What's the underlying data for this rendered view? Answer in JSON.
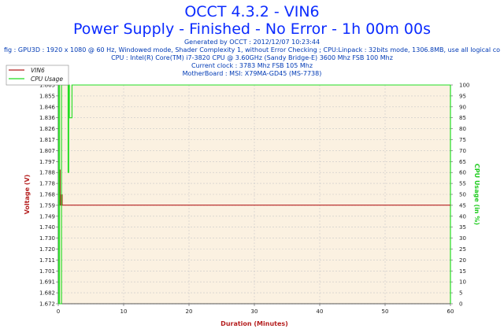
{
  "header": {
    "title": "OCCT 4.3.2 - VIN6",
    "subtitle": "Power Supply - Finished - No Error - 1h 00m 00s",
    "info_lines": [
      "Generated by OCCT : 2012/12/07 10:23:44",
      "fig : GPU3D : 1920 x 1080 @ 60 Hz, Windowed mode, Shader Complexity 1, without Error Checking ; CPU:Linpack : 32bits mode, 1306.8MB, use all logical co",
      "CPU : Intel(R) Core(TM) i7-3820 CPU @ 3.60GHz (Sandy Bridge-E) 3600 Mhz FSB 100 Mhz",
      "Current clock : 3783 Mhz FSB 105 Mhz",
      "MotherBoard : MSI: X79MA-GD45 (MS-7738)"
    ]
  },
  "colors": {
    "title": "#0b2bff",
    "info": "#003ab5",
    "plot_bg": "#fbf1e1",
    "grid": "#c8c8c8",
    "vin6": "#b51f1f",
    "cpu": "#22dd22",
    "left_axis_label": "#b51f1f",
    "right_axis_label": "#22cc22",
    "x_axis_label": "#b51f1f"
  },
  "chart_data": {
    "type": "line",
    "xlabel": "Duration (Minutes)",
    "ylabel": "Voltage (V)",
    "y2label": "CPU Usage (in %)",
    "xlim": [
      0,
      60
    ],
    "ylim": [
      1.672,
      1.865
    ],
    "y2lim": [
      0,
      100
    ],
    "x_ticks": [
      "0",
      "10",
      "20",
      "30",
      "40",
      "50",
      "60"
    ],
    "y_ticks": [
      "1.672",
      "1.682",
      "1.691",
      "1.701",
      "1.711",
      "1.720",
      "1.730",
      "1.740",
      "1.749",
      "1.759",
      "1.768",
      "1.778",
      "1.788",
      "1.797",
      "1.807",
      "1.817",
      "1.826",
      "1.836",
      "1.846",
      "1.855",
      "1.865"
    ],
    "y2_ticks": [
      "0",
      "5",
      "10",
      "15",
      "20",
      "25",
      "30",
      "35",
      "40",
      "45",
      "50",
      "55",
      "60",
      "65",
      "70",
      "75",
      "80",
      "85",
      "90",
      "95",
      "100"
    ],
    "legend": {
      "position": "top-left",
      "entries": [
        "VIN6",
        "CPU Usage"
      ]
    },
    "series": [
      {
        "name": "VIN6",
        "axis": "left",
        "x": [
          0,
          0.15,
          0.15,
          0.3,
          0.3,
          0.45,
          0.45,
          0.6,
          0.6,
          60
        ],
        "y": [
          1.759,
          1.759,
          1.79,
          1.79,
          1.759,
          1.759,
          1.768,
          1.768,
          1.759,
          1.759
        ]
      },
      {
        "name": "CPU Usage",
        "axis": "right",
        "x": [
          0,
          0.05,
          0.05,
          0.2,
          0.2,
          0.5,
          0.5,
          1.5,
          1.5,
          1.6,
          1.6,
          1.7,
          1.7,
          2.1,
          2.1,
          2.2,
          2.2,
          60
        ],
        "y": [
          0,
          0,
          100,
          100,
          0,
          0,
          100,
          100,
          60,
          60,
          100,
          100,
          85,
          85,
          100,
          100,
          100,
          100
        ]
      }
    ]
  }
}
